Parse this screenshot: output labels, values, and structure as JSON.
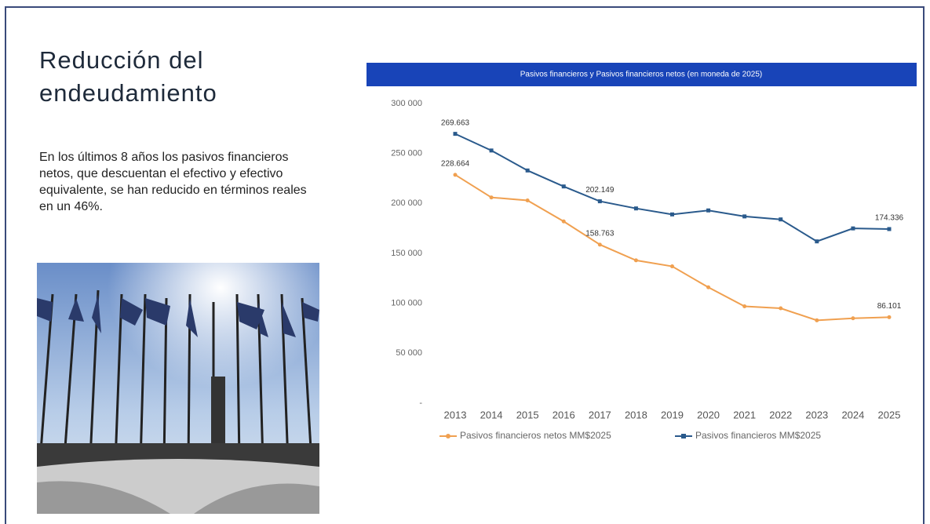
{
  "slide": {
    "title": "Reducción del endeudamiento",
    "text": "En los últimos 8 años los pasivos financieros netos, que descuentan el efectivo y efectivo equivalente, se han reducido en términos reales en un 46%."
  },
  "chart_data": {
    "type": "line",
    "title": "Pasivos financieros y Pasivos financieros netos (en moneda de 2025)",
    "categories": [
      "2013",
      "2014",
      "2015",
      "2016",
      "2017",
      "2018",
      "2019",
      "2020",
      "2021",
      "2022",
      "2023",
      "2024",
      "2025"
    ],
    "series": [
      {
        "name": "Pasivos financieros netos MM$2025",
        "color": "#f0a050",
        "marker": "circle",
        "values": [
          228664,
          206000,
          203000,
          182000,
          158763,
          143000,
          137000,
          116000,
          97000,
          95000,
          83000,
          85000,
          86101
        ],
        "value_labels": [
          "228.664",
          null,
          null,
          null,
          "158.763",
          null,
          null,
          null,
          null,
          null,
          null,
          null,
          "86.101"
        ]
      },
      {
        "name": "Pasivos financieros MM$2025",
        "color": "#2a5a8c",
        "marker": "square",
        "values": [
          269663,
          253000,
          233000,
          217000,
          202149,
          195000,
          189000,
          193000,
          187000,
          184000,
          162000,
          175000,
          174336
        ],
        "value_labels": [
          "269.663",
          null,
          null,
          null,
          "202.149",
          null,
          null,
          null,
          null,
          null,
          null,
          null,
          "174.336"
        ]
      }
    ],
    "ylim": [
      0,
      300000
    ],
    "yticks": [
      {
        "value": 0,
        "label": "-"
      },
      {
        "value": 50000,
        "label": "50 000"
      },
      {
        "value": 100000,
        "label": "100 000"
      },
      {
        "value": 150000,
        "label": "150 000"
      },
      {
        "value": 200000,
        "label": "200 000"
      },
      {
        "value": 250000,
        "label": "250 000"
      },
      {
        "value": 300000,
        "label": "300 000"
      }
    ],
    "grid": false,
    "legend": "bottom"
  }
}
